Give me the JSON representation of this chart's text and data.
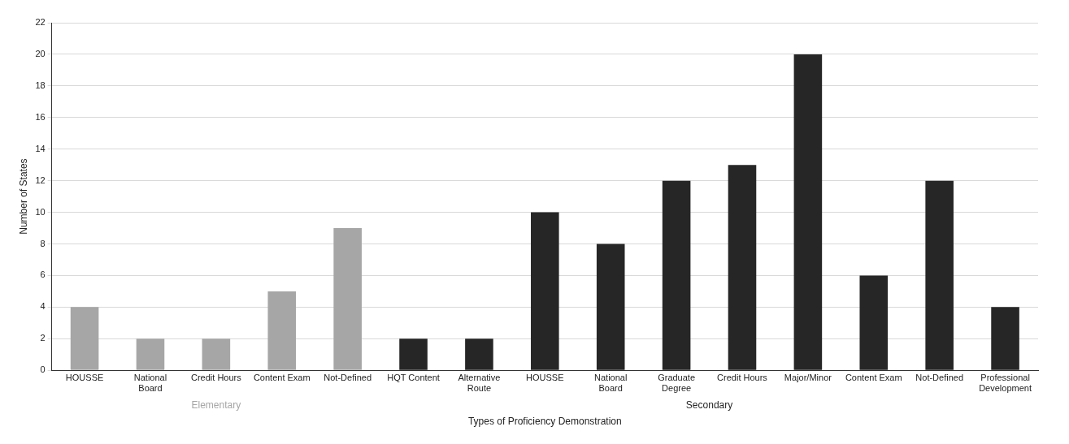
{
  "chart_data": {
    "type": "bar",
    "xlabel": "Types of Proficiency Demonstration",
    "ylabel": "Number of States",
    "categories": [
      "HOUSSE",
      "National Board",
      "Credit Hours",
      "Content Exam",
      "Not-Defined",
      "HQT Content",
      "Alternative Route",
      "HOUSSE",
      "National Board",
      "Graduate Degree",
      "Credit Hours",
      "Major/Minor",
      "Content Exam",
      "Not-Defined",
      "Professional Development"
    ],
    "series": [
      {
        "name": "Elementary",
        "color": "#a6a6a6",
        "values": [
          4,
          2,
          2,
          5,
          9,
          null,
          null,
          null,
          null,
          null,
          null,
          null,
          null,
          null,
          null
        ]
      },
      {
        "name": "Secondary",
        "color": "#262626",
        "values": [
          null,
          null,
          null,
          null,
          null,
          2,
          2,
          10,
          8,
          12,
          13,
          20,
          6,
          12,
          4
        ]
      }
    ],
    "ylim": [
      0,
      22
    ],
    "yticks": [
      0,
      2,
      4,
      6,
      8,
      10,
      12,
      14,
      16,
      18,
      20,
      22
    ],
    "grid": "y",
    "legend": false
  }
}
